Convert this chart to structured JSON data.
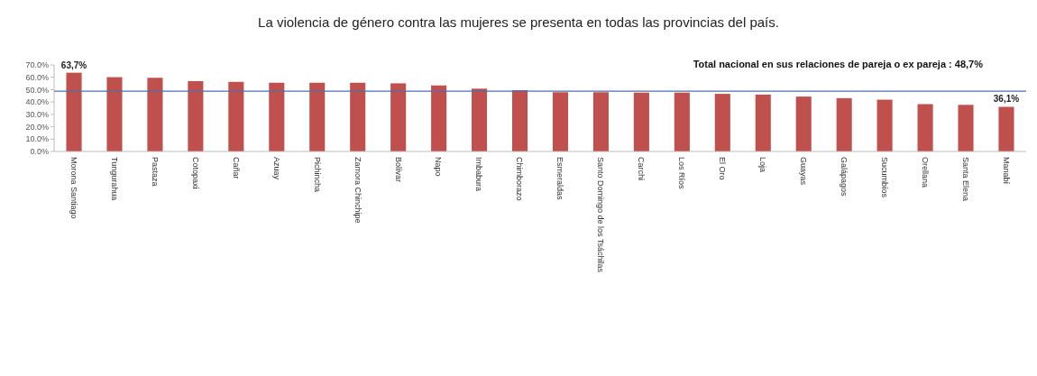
{
  "chart_data": {
    "type": "bar",
    "title": "La violencia de género contra las mujeres se presenta en todas las provincias del país.",
    "categories": [
      "Morona Santiago",
      "Tungurahua",
      "Pastaza",
      "Cotopaxi",
      "Cañar",
      "Azuay",
      "Pichincha",
      "Zamora Chinchipe",
      "Bolívar",
      "Napo",
      "Imbabura",
      "Chimborazo",
      "Esmeraldas",
      "Santo Domingo de los Tsáchilas",
      "Carchi",
      "Los Ríos",
      "El Oro",
      "Loja",
      "Guayas",
      "Galápagos",
      "Sucumbíos",
      "Orellana",
      "Santa Elena",
      "Manabí"
    ],
    "values": [
      63.7,
      60.1,
      59.6,
      56.9,
      56.3,
      55.6,
      55.6,
      55.6,
      55.1,
      53.4,
      50.8,
      49.6,
      47.9,
      47.9,
      47.6,
      47.6,
      46.6,
      46.0,
      44.4,
      43.1,
      41.9,
      38.3,
      37.7,
      36.1
    ],
    "value_labels": [
      "63,7%",
      null,
      null,
      null,
      null,
      null,
      null,
      null,
      null,
      null,
      null,
      null,
      null,
      null,
      null,
      null,
      null,
      null,
      null,
      null,
      null,
      null,
      null,
      "36,1%"
    ],
    "color": "#c0504d",
    "ylim": [
      0,
      70
    ],
    "yticks": [
      {
        "value": 0,
        "label": "0.0%"
      },
      {
        "value": 10,
        "label": "10.0%"
      },
      {
        "value": 20,
        "label": "20.0%"
      },
      {
        "value": 30,
        "label": "30.0%"
      },
      {
        "value": 40,
        "label": "40.0%"
      },
      {
        "value": 50,
        "label": "50.0%"
      },
      {
        "value": 60,
        "label": "60.0%"
      },
      {
        "value": 70,
        "label": "70.0%"
      }
    ],
    "ref_lines": [
      {
        "axis": "y",
        "value": 48.7,
        "label": "Total nacional en sus relaciones de pareja o ex pareja : 48,7%",
        "color": "#4f6fa8"
      }
    ]
  }
}
